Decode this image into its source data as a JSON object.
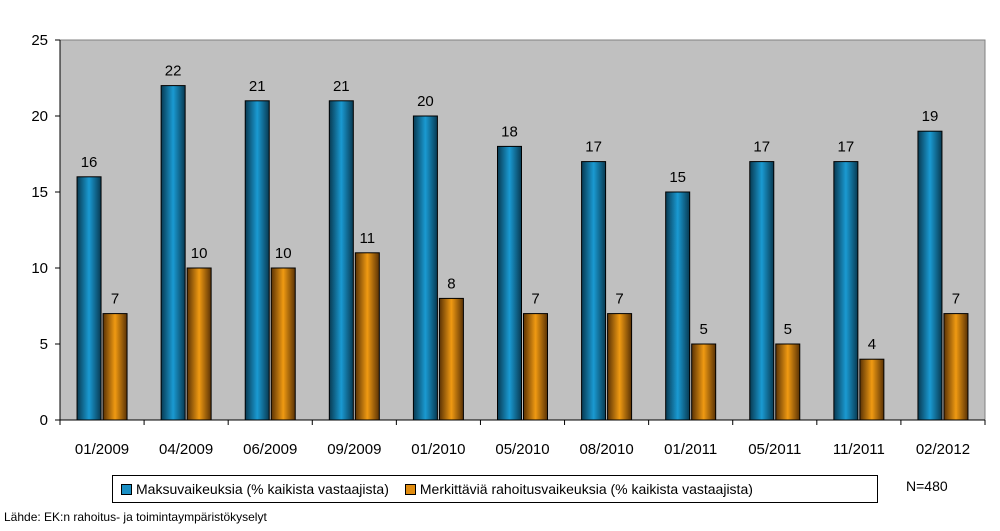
{
  "chart_data": {
    "type": "bar",
    "categories": [
      "01/2009",
      "04/2009",
      "06/2009",
      "09/2009",
      "01/2010",
      "05/2010",
      "08/2010",
      "01/2011",
      "05/2011",
      "11/2011",
      "02/2012"
    ],
    "series": [
      {
        "name": "Maksuvaikeuksia (% kaikista vastaajista)",
        "values": [
          16,
          22,
          21,
          21,
          20,
          18,
          17,
          15,
          17,
          17,
          19
        ],
        "color": "#1a8fc4"
      },
      {
        "name": "Merkittäviä rahoitusvaikeuksia (% kaikista vastaajista)",
        "values": [
          7,
          10,
          10,
          11,
          8,
          7,
          7,
          5,
          5,
          4,
          7
        ],
        "color": "#e08c10"
      }
    ],
    "ylim": [
      0,
      25
    ],
    "yticks": [
      0,
      5,
      10,
      15,
      20,
      25
    ],
    "grid": false,
    "plot_background": "#c0c0c0",
    "legend_position": "bottom"
  },
  "note": "N=480",
  "source": "Lähde: EK:n rahoitus- ja toimintaympäristökyselyt"
}
